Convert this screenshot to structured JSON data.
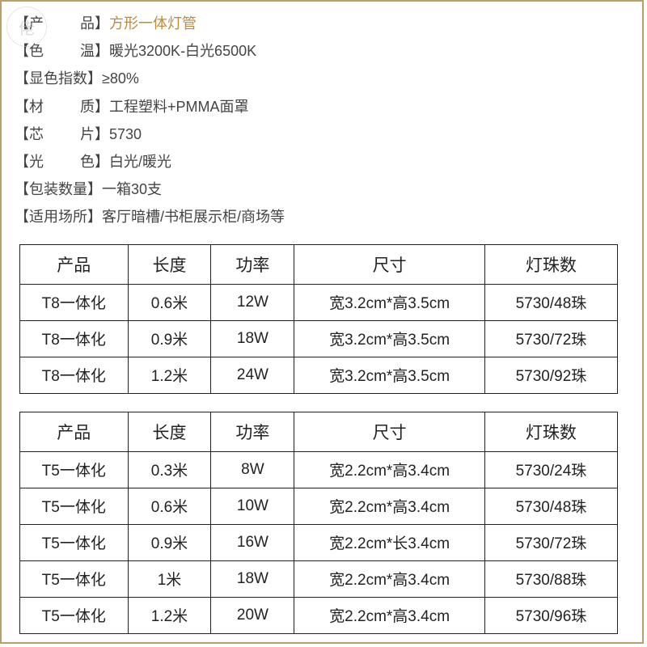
{
  "watermark": "佬",
  "specs": [
    {
      "label_open": "【产",
      "label_close": "品】",
      "value": "方形一体灯管",
      "highlight": true
    },
    {
      "label_open": "【色",
      "label_close": "温】",
      "value": "暖光3200K-白光6500K",
      "highlight": false
    },
    {
      "label_open": "【显色指数】",
      "label_close": "",
      "value": "≥80%",
      "highlight": false
    },
    {
      "label_open": "【材",
      "label_close": "质】",
      "value": "工程塑料+PMMA面罩",
      "highlight": false
    },
    {
      "label_open": "【芯",
      "label_close": "片】",
      "value": "5730",
      "highlight": false
    },
    {
      "label_open": "【光",
      "label_close": "色】",
      "value": "白光/暖光",
      "highlight": false
    },
    {
      "label_open": "【包装数量】",
      "label_close": "",
      "value": "一箱30支",
      "highlight": false
    },
    {
      "label_open": "【适用场所】",
      "label_close": "",
      "value": "客厅暗槽/书柜展示柜/商场等",
      "highlight": false
    }
  ],
  "table_headers": {
    "product": "产品",
    "length": "长度",
    "power": "功率",
    "size": "尺寸",
    "beads": "灯珠数"
  },
  "table1_rows": [
    {
      "product": "T8一体化",
      "length": "0.6米",
      "power": "12W",
      "size": "宽3.2cm*高3.5cm",
      "beads": "5730/48珠"
    },
    {
      "product": "T8一体化",
      "length": "0.9米",
      "power": "18W",
      "size": "宽3.2cm*高3.5cm",
      "beads": "5730/72珠"
    },
    {
      "product": "T8一体化",
      "length": "1.2米",
      "power": "24W",
      "size": "宽3.2cm*高3.5cm",
      "beads": "5730/92珠"
    }
  ],
  "table2_rows": [
    {
      "product": "T5一体化",
      "length": "0.3米",
      "power": "8W",
      "size": "宽2.2cm*高3.4cm",
      "beads": "5730/24珠"
    },
    {
      "product": "T5一体化",
      "length": "0.6米",
      "power": "10W",
      "size": "宽2.2cm*高3.4cm",
      "beads": "5730/48珠"
    },
    {
      "product": "T5一体化",
      "length": "0.9米",
      "power": "16W",
      "size": "宽2.2cm*长3.4cm",
      "beads": "5730/72珠"
    },
    {
      "product": "T5一体化",
      "length": "1米",
      "power": "18W",
      "size": "宽2.2cm*高3.4cm",
      "beads": "5730/88珠"
    },
    {
      "product": "T5一体化",
      "length": "1.2米",
      "power": "20W",
      "size": "宽2.2cm*高3.4cm",
      "beads": "5730/96珠"
    }
  ],
  "spec_label_gap": {
    "two_char": "         ",
    "none": ""
  }
}
